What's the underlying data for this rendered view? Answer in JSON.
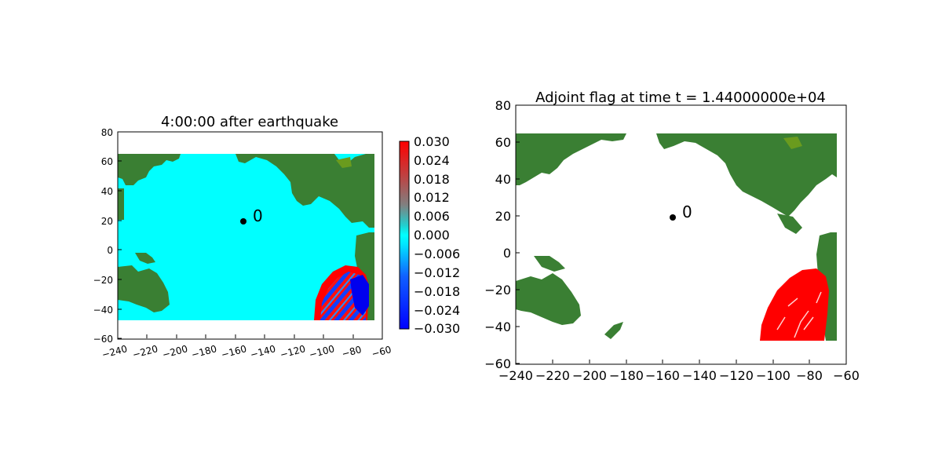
{
  "chart_data": [
    {
      "type": "heatmap",
      "title": "4:00:00 after earthquake",
      "xlim": [
        -240,
        -60
      ],
      "ylim": [
        -60,
        80
      ],
      "xticks": [
        "−240",
        "−220",
        "−200",
        "−180",
        "−160",
        "−140",
        "−120",
        "−100",
        "−80",
        "−60"
      ],
      "yticks": [
        "80",
        "60",
        "40",
        "20",
        "0",
        "−20",
        "−40",
        "−60"
      ],
      "colorbar": {
        "min": -0.03,
        "max": 0.03,
        "ticks": [
          "0.030",
          "0.024",
          "0.018",
          "0.012",
          "0.006",
          "0.000",
          "−0.006",
          "−0.012",
          "−0.018",
          "−0.024",
          "−0.030"
        ]
      },
      "marker": {
        "x": -155,
        "y": 20,
        "label": "0"
      },
      "colors": {
        "water": "#00ffff",
        "land": "#3a7f33",
        "land_shallow": "#6a9b1e",
        "wave_pos": "#ff0000",
        "wave_neg": "#0000ff"
      }
    },
    {
      "type": "heatmap",
      "title": "Adjoint flag at time t = 1.44000000e+04",
      "xlim": [
        -240,
        -60
      ],
      "ylim": [
        -60,
        80
      ],
      "xticks": [
        "−240",
        "−220",
        "−200",
        "−180",
        "−160",
        "−140",
        "−120",
        "−100",
        "−80",
        "−60"
      ],
      "yticks": [
        "80",
        "60",
        "40",
        "20",
        "0",
        "−20",
        "−40",
        "−60"
      ],
      "marker": {
        "x": -155,
        "y": 20,
        "label": "0"
      },
      "colors": {
        "water": "#ffffff",
        "land": "#3a7f33",
        "land_shallow": "#6a9b1e",
        "flag": "#ff0000"
      }
    }
  ]
}
